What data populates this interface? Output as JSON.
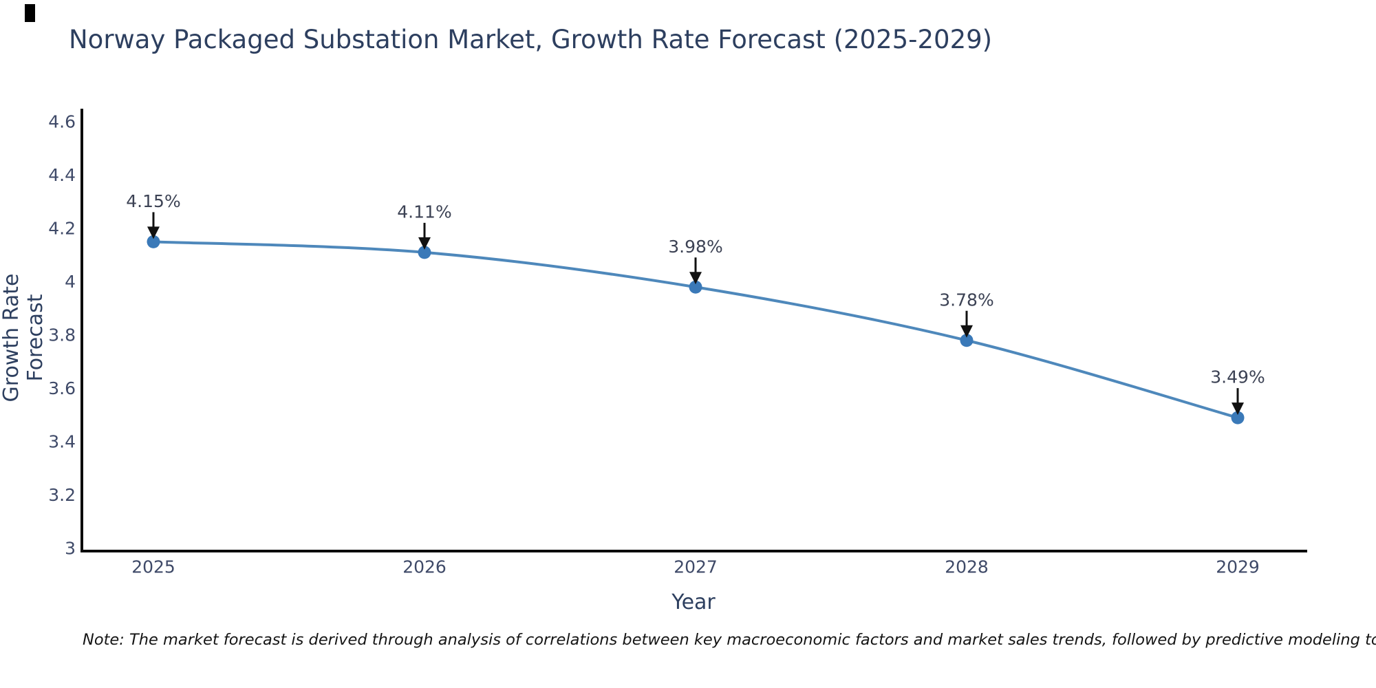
{
  "title": "Norway Packaged Substation Market, Growth Rate Forecast (2025-2029)",
  "note": "Note: The market forecast is derived through analysis of correlations between key macroeconomic factors and market sales trends, followed by predictive modeling to project future sales",
  "chart_data": {
    "type": "line",
    "title": "Norway Packaged Substation Market, Growth Rate Forecast (2025-2029)",
    "xlabel": "Year",
    "ylabel": "Growth Rate Forecast",
    "categories": [
      "2025",
      "2026",
      "2027",
      "2028",
      "2029"
    ],
    "values": [
      4.15,
      4.11,
      3.98,
      3.78,
      3.49
    ],
    "labels": [
      "4.15%",
      "4.11%",
      "3.98%",
      "3.78%",
      "3.49%"
    ],
    "yticks": [
      "4.6",
      "4.4",
      "4.2",
      "4",
      "3.8",
      "3.6",
      "3.4",
      "3.2",
      "3"
    ],
    "ylim": [
      3,
      4.65
    ],
    "grid": false,
    "legend": "none",
    "colors": {
      "line": "#4e88bb",
      "marker": "#3a79b8",
      "axis": "#0b0b0b",
      "arrow": "#111111",
      "tick_text": "#3f4a68",
      "title_text": "#2d3f5f",
      "annotation_text": "#3c4254"
    }
  }
}
